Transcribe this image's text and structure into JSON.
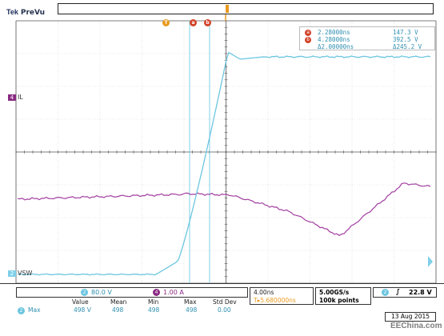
{
  "header": {
    "brand": "Tek",
    "mode": "PreVu"
  },
  "channels": {
    "il_label": "IL",
    "il_number": "4",
    "vsw_label": "VSW",
    "vsw_number": "2"
  },
  "cursors": {
    "a_label": "a",
    "b_label": "b",
    "t_label": "T",
    "a_time": "2.28000ns",
    "a_value": "147.3 V",
    "b_time": "4.28000ns",
    "b_value": "392.5 V",
    "delta_time": "Δ2.00000ns",
    "delta_value": "Δ245.2 V"
  },
  "bottom": {
    "ch2_scale": "80.0 V",
    "ch4_scale": "1.00 A",
    "ch2_num": "2",
    "ch4_num": "4",
    "timebase": "4.00ns",
    "trigger_pos": "T▸5.680000ns",
    "sample_rate": "5.00GS/s",
    "record_length": "100k points",
    "trig_ch": "2",
    "trig_slope": "∫",
    "trig_level": "22.8 V",
    "date": "13 Aug 2015"
  },
  "measurement": {
    "headers": [
      "Value",
      "Mean",
      "Min",
      "Max",
      "Std Dev"
    ],
    "name": "Max",
    "ch": "2",
    "values": [
      "498 V",
      "498",
      "498",
      "498",
      "0.00"
    ]
  },
  "watermark": "EEChina.com",
  "colors": {
    "ch2_trace": "#6cc6e0",
    "ch4_trace": "#a33ea0",
    "cursor": "#7fd0e8",
    "cursor_badge": "#d2432a",
    "trigger": "#e89a1e"
  }
}
